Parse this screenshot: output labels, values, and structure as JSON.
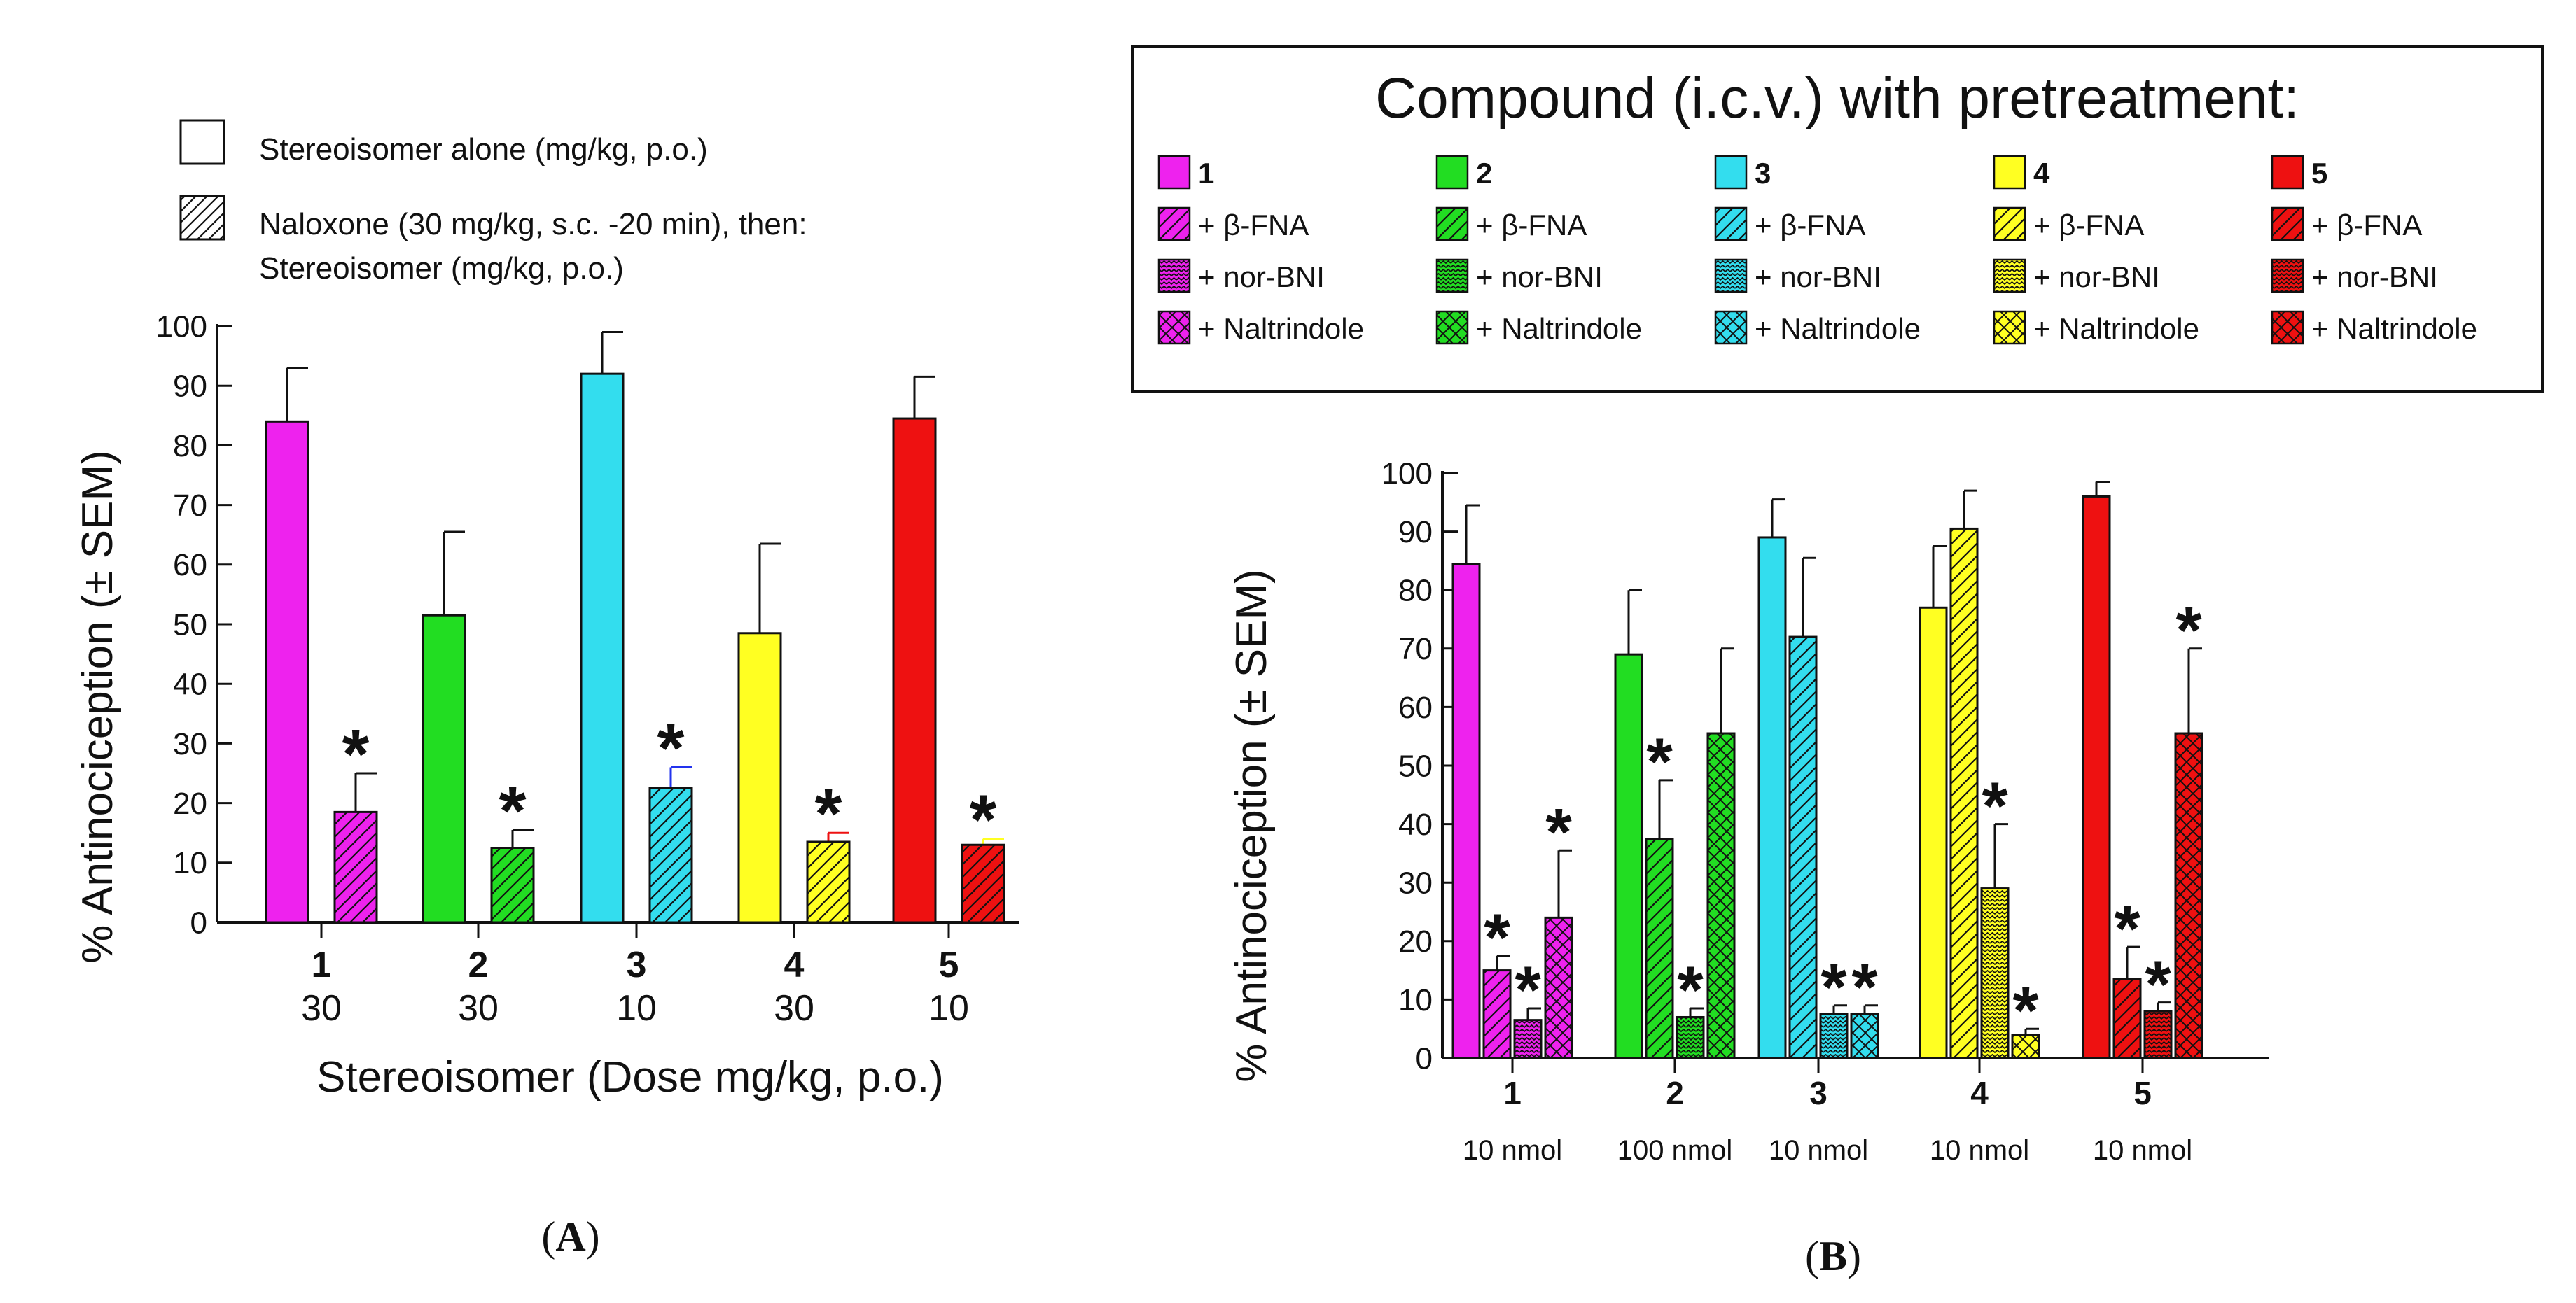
{
  "colors": {
    "magenta": "#ee22ee",
    "green": "#22dd22",
    "cyan": "#33ddee",
    "yellow": "#ffff22",
    "red": "#ee1111",
    "sem_blue": "#2233ee"
  },
  "significance_marker": "*",
  "panel_a": {
    "caption": "A",
    "legend": {
      "alone": "Stereoisomer alone (mg/kg, p.o.)",
      "naloxone_line1": "Naloxone (30 mg/kg, s.c. -20 min), then:",
      "naloxone_line2": "Stereoisomer (mg/kg, p.o.)"
    }
  },
  "panel_b": {
    "caption": "B",
    "legend": {
      "title": "Compound (i.c.v.) with pretreatment:",
      "columns": [
        {
          "compound": "1",
          "color": "magenta",
          "labels": [
            "1",
            "+ β-FNA",
            "+ nor-BNI",
            "+ Naltrindole"
          ]
        },
        {
          "compound": "2",
          "color": "green",
          "labels": [
            "2",
            "+ β-FNA",
            "+ nor-BNI",
            "+ Naltrindole"
          ]
        },
        {
          "compound": "3",
          "color": "cyan",
          "labels": [
            "3",
            "+ β-FNA",
            "+ nor-BNI",
            "+ Naltrindole"
          ]
        },
        {
          "compound": "4",
          "color": "yellow",
          "labels": [
            "4",
            "+ β-FNA",
            "+ nor-BNI",
            "+ Naltrindole"
          ]
        },
        {
          "compound": "5",
          "color": "red",
          "labels": [
            "5",
            "+ β-FNA",
            "+ nor-BNI",
            "+ Naltrindole"
          ]
        }
      ]
    }
  },
  "chart_data": [
    {
      "id": "A",
      "type": "bar",
      "ylabel": "% Antinociception (± SEM)",
      "xlabel": "Stereoisomer (Dose mg/kg, p.o.)",
      "ylim": [
        0,
        100
      ],
      "yticks": [
        0,
        10,
        20,
        30,
        40,
        50,
        60,
        70,
        80,
        90,
        100
      ],
      "categories": [
        "1",
        "2",
        "3",
        "4",
        "5"
      ],
      "doses": [
        "30",
        "30",
        "10",
        "30",
        "10"
      ],
      "groups": [
        {
          "category": "1",
          "color": "magenta",
          "bars": [
            {
              "series": "Stereoisomer alone",
              "value": 84,
              "sem": 9,
              "sig": false
            },
            {
              "series": "Naloxone then stereoisomer",
              "value": 18.5,
              "sem": 6.5,
              "sig": true
            }
          ]
        },
        {
          "category": "2",
          "color": "green",
          "bars": [
            {
              "series": "Stereoisomer alone",
              "value": 51.5,
              "sem": 14,
              "sig": false
            },
            {
              "series": "Naloxone then stereoisomer",
              "value": 12.5,
              "sem": 3,
              "sig": true
            }
          ]
        },
        {
          "category": "3",
          "color": "cyan",
          "bars": [
            {
              "series": "Stereoisomer alone",
              "value": 92,
              "sem": 7,
              "sig": false
            },
            {
              "series": "Naloxone then stereoisomer",
              "value": 22.5,
              "sem": 3.5,
              "sig": true,
              "semColor": "sem_blue"
            }
          ]
        },
        {
          "category": "4",
          "color": "yellow",
          "bars": [
            {
              "series": "Stereoisomer alone",
              "value": 48.5,
              "sem": 15,
              "sig": false
            },
            {
              "series": "Naloxone then stereoisomer",
              "value": 13.5,
              "sem": 1.5,
              "sig": true,
              "semColor": "red"
            }
          ]
        },
        {
          "category": "5",
          "color": "red",
          "bars": [
            {
              "series": "Stereoisomer alone",
              "value": 84.5,
              "sem": 7,
              "sig": false
            },
            {
              "series": "Naloxone then stereoisomer",
              "value": 13,
              "sem": 1,
              "sig": true,
              "semColor": "yellow"
            }
          ]
        }
      ]
    },
    {
      "id": "B",
      "type": "bar",
      "ylabel": "% Antinociception (± SEM)",
      "ylim": [
        0,
        100
      ],
      "yticks": [
        0,
        10,
        20,
        30,
        40,
        50,
        60,
        70,
        80,
        90,
        100
      ],
      "categories": [
        "1",
        "2",
        "3",
        "4",
        "5"
      ],
      "doses": [
        "10 nmol",
        "100 nmol",
        "10 nmol",
        "10 nmol",
        "10 nmol"
      ],
      "groups": [
        {
          "category": "1",
          "color": "magenta",
          "bars": [
            {
              "series": "alone",
              "value": 84.5,
              "sem": 10,
              "sig": false
            },
            {
              "series": "+ β-FNA",
              "value": 15,
              "sem": 2.5,
              "sig": true
            },
            {
              "series": "+ nor-BNI",
              "value": 6.5,
              "sem": 2,
              "sig": true
            },
            {
              "series": "+ Naltrindole",
              "value": 24,
              "sem": 11.5,
              "sig": true
            }
          ]
        },
        {
          "category": "2",
          "color": "green",
          "bars": [
            {
              "series": "alone",
              "value": 69,
              "sem": 11,
              "sig": false
            },
            {
              "series": "+ β-FNA",
              "value": 37.5,
              "sem": 10,
              "sig": true
            },
            {
              "series": "+ nor-BNI",
              "value": 7,
              "sem": 1.5,
              "sig": true
            },
            {
              "series": "+ Naltrindole",
              "value": 55.5,
              "sem": 14.5,
              "sig": false
            }
          ]
        },
        {
          "category": "3",
          "color": "cyan",
          "bars": [
            {
              "series": "alone",
              "value": 89,
              "sem": 6.5,
              "sig": false
            },
            {
              "series": "+ β-FNA",
              "value": 72,
              "sem": 13.5,
              "sig": false
            },
            {
              "series": "+ nor-BNI",
              "value": 7.5,
              "sem": 1.5,
              "sig": true
            },
            {
              "series": "+ Naltrindole",
              "value": 7.5,
              "sem": 1.5,
              "sig": true
            }
          ]
        },
        {
          "category": "4",
          "color": "yellow",
          "bars": [
            {
              "series": "alone",
              "value": 77,
              "sem": 10.5,
              "sig": false
            },
            {
              "series": "+ β-FNA",
              "value": 90.5,
              "sem": 6.5,
              "sig": false
            },
            {
              "series": "+ nor-BNI",
              "value": 29,
              "sem": 11,
              "sig": true
            },
            {
              "series": "+ Naltrindole",
              "value": 4,
              "sem": 1,
              "sig": true
            }
          ]
        },
        {
          "category": "5",
          "color": "red",
          "bars": [
            {
              "series": "alone",
              "value": 96,
              "sem": 2.5,
              "sig": false
            },
            {
              "series": "+ β-FNA",
              "value": 13.5,
              "sem": 5.5,
              "sig": true
            },
            {
              "series": "+ nor-BNI",
              "value": 8,
              "sem": 1.5,
              "sig": true
            },
            {
              "series": "+ Naltrindole",
              "value": 55.5,
              "sem": 14.5,
              "sig": true
            }
          ]
        }
      ]
    }
  ]
}
